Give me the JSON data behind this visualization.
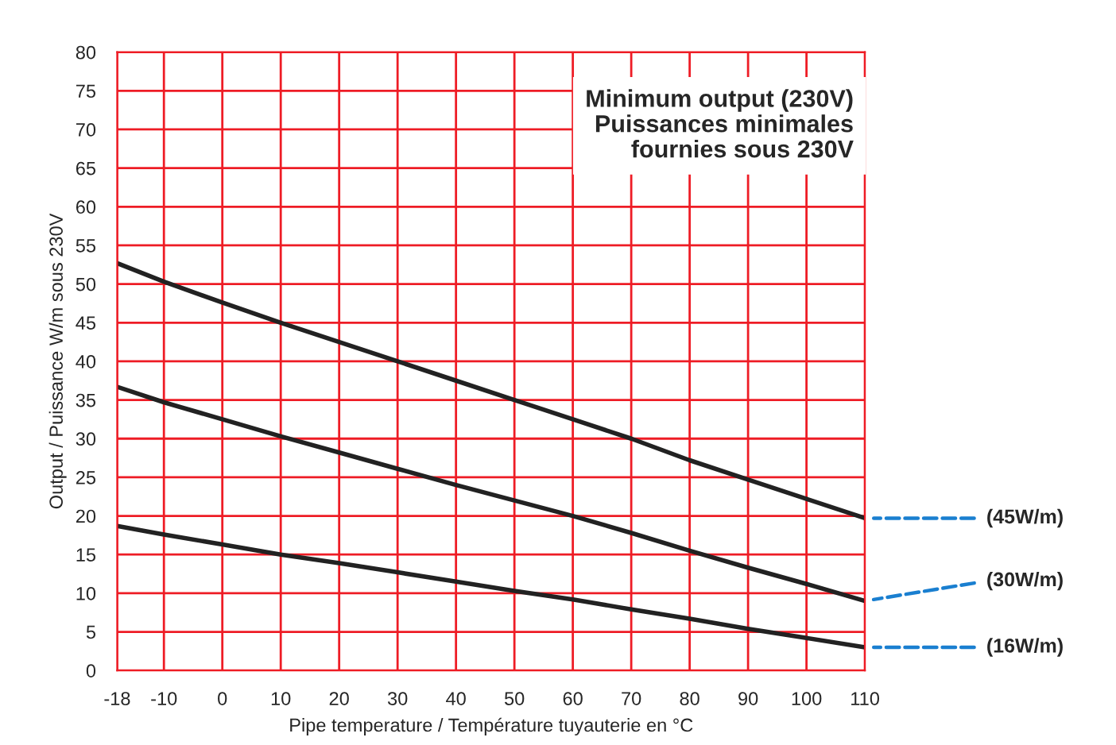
{
  "chart_data": {
    "type": "line",
    "title": "Minimum output (230V)\nPuissances minimales\nfournies sous 230V",
    "xlabel": "Pipe temperature / Température tuyauterie en °C",
    "ylabel": "Output / Puissance W/m sous 230V",
    "x": [
      -18,
      -10,
      0,
      10,
      20,
      30,
      40,
      50,
      60,
      70,
      80,
      90,
      100,
      110
    ],
    "series": [
      {
        "name": "(45W/m)",
        "color": "#222222",
        "values": [
          52.7,
          50.3,
          47.6,
          45,
          42.5,
          40,
          37.5,
          35,
          32.5,
          30,
          27.2,
          24.7,
          22.2,
          19.7
        ]
      },
      {
        "name": "(30W/m)",
        "color": "#222222",
        "values": [
          36.7,
          34.7,
          32.5,
          30.3,
          28.2,
          26.1,
          24,
          22,
          20,
          17.8,
          15.5,
          13.3,
          11.2,
          9
        ]
      },
      {
        "name": "(16W/m)",
        "color": "#222222",
        "values": [
          18.7,
          17.6,
          16.3,
          15,
          13.9,
          12.7,
          11.5,
          10.3,
          9.2,
          7.9,
          6.7,
          5.4,
          4.2,
          3
        ]
      }
    ],
    "xlim": [
      -18,
      110
    ],
    "xticks": [
      -18,
      -10,
      0,
      10,
      20,
      30,
      40,
      50,
      60,
      70,
      80,
      90,
      100,
      110
    ],
    "ylim": [
      0,
      80
    ],
    "yticks": [
      0,
      5,
      10,
      15,
      20,
      25,
      30,
      35,
      40,
      45,
      50,
      55,
      60,
      65,
      70,
      75,
      80
    ],
    "grid": true,
    "marker": "none",
    "line_style": "solid",
    "legend": false
  }
}
